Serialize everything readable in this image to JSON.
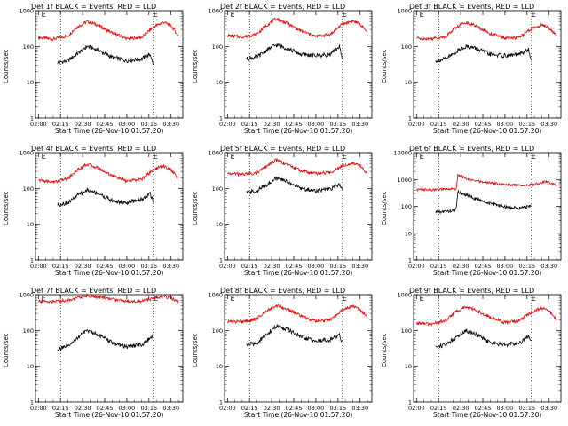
{
  "colors": {
    "events": "#000000",
    "lld": "#e00000",
    "axis": "#000000"
  },
  "x_ticks": [
    "02:00",
    "02:15",
    "02:30",
    "02:45",
    "03:00",
    "03:15",
    "03:30"
  ],
  "y_ticks": [
    "1",
    "10",
    "100",
    "1000"
  ],
  "y_ticks_6f": [
    "1",
    "10",
    "100",
    "1000",
    "10000"
  ],
  "ylabel": "Counts/sec",
  "xlabel": "Start Time (26-Nov-10 01:57:20)",
  "chart_data": [
    {
      "type": "line",
      "title": "Det 1f BLACK = Events, RED = LLD",
      "xlabel": "Start Time (26-Nov-10 01:57:20)",
      "ylabel": "Counts/sec",
      "ylim": [
        1,
        1000
      ],
      "yscale": "log",
      "xlim": [
        "02:00",
        "03:35"
      ],
      "marker_lines": [
        "02:15",
        "03:18"
      ],
      "marker_labels": [
        {
          "text": "E",
          "x": "02:02"
        },
        {
          "text": "E",
          "x": "03:18"
        }
      ],
      "series": [
        {
          "name": "RED = LLD",
          "color": "#e00000",
          "x": [
            "02:00",
            "02:10",
            "02:20",
            "02:25",
            "02:33",
            "02:40",
            "02:50",
            "03:00",
            "03:10",
            "03:18",
            "03:25",
            "03:30",
            "03:35"
          ],
          "values": [
            180,
            160,
            200,
            320,
            500,
            400,
            240,
            165,
            180,
            350,
            480,
            380,
            200
          ]
        },
        {
          "name": "BLACK = Events",
          "color": "#000000",
          "x": [
            "02:13",
            "02:20",
            "02:28",
            "02:33",
            "02:40",
            "02:50",
            "03:00",
            "03:10",
            "03:16",
            "03:18"
          ],
          "values": [
            35,
            40,
            70,
            100,
            80,
            50,
            40,
            45,
            60,
            30
          ]
        }
      ]
    },
    {
      "type": "line",
      "title": "Det 2f BLACK = Events, RED = LLD",
      "xlabel": "Start Time (26-Nov-10 01:57:20)",
      "ylabel": "Counts/sec",
      "ylim": [
        1,
        1000
      ],
      "yscale": "log",
      "xlim": [
        "02:00",
        "03:35"
      ],
      "marker_lines": [
        "02:15",
        "03:18"
      ],
      "marker_labels": [
        {
          "text": "E",
          "x": "02:02"
        },
        {
          "text": "E",
          "x": "03:18"
        }
      ],
      "series": [
        {
          "name": "RED = LLD",
          "color": "#e00000",
          "x": [
            "02:00",
            "02:10",
            "02:20",
            "02:25",
            "02:33",
            "02:40",
            "02:50",
            "03:00",
            "03:10",
            "03:18",
            "03:25",
            "03:30",
            "03:35"
          ],
          "values": [
            200,
            185,
            220,
            350,
            600,
            450,
            270,
            190,
            220,
            420,
            520,
            420,
            240
          ]
        },
        {
          "name": "BLACK = Events",
          "color": "#000000",
          "x": [
            "02:13",
            "02:20",
            "02:28",
            "02:33",
            "02:40",
            "02:50",
            "03:00",
            "03:10",
            "03:16",
            "03:18"
          ],
          "values": [
            45,
            50,
            85,
            110,
            90,
            60,
            55,
            60,
            100,
            45
          ]
        }
      ]
    },
    {
      "type": "line",
      "title": "Det 3f BLACK = Events, RED = LLD",
      "xlabel": "Start Time (26-Nov-10 01:57:20)",
      "ylabel": "Counts/sec",
      "ylim": [
        1,
        1000
      ],
      "yscale": "log",
      "xlim": [
        "02:00",
        "03:35"
      ],
      "marker_lines": [
        "02:15",
        "03:18"
      ],
      "marker_labels": [
        {
          "text": "E",
          "x": "02:02"
        },
        {
          "text": "E",
          "x": "03:18"
        }
      ],
      "series": [
        {
          "name": "RED = LLD",
          "color": "#e00000",
          "x": [
            "02:00",
            "02:10",
            "02:20",
            "02:25",
            "02:33",
            "02:40",
            "02:50",
            "03:00",
            "03:10",
            "03:18",
            "03:25",
            "03:30",
            "03:35"
          ],
          "values": [
            170,
            165,
            190,
            300,
            480,
            380,
            230,
            170,
            180,
            310,
            400,
            330,
            200
          ]
        },
        {
          "name": "BLACK = Events",
          "color": "#000000",
          "x": [
            "02:13",
            "02:20",
            "02:28",
            "02:33",
            "02:40",
            "02:50",
            "03:00",
            "03:10",
            "03:16",
            "03:18"
          ],
          "values": [
            40,
            45,
            75,
            100,
            90,
            60,
            55,
            60,
            80,
            40
          ]
        }
      ]
    },
    {
      "type": "line",
      "title": "Det 4f BLACK = Events, RED = LLD",
      "xlabel": "Start Time (26-Nov-10 01:57:20)",
      "ylabel": "Counts/sec",
      "ylim": [
        1,
        1000
      ],
      "yscale": "log",
      "xlim": [
        "02:00",
        "03:35"
      ],
      "marker_lines": [
        "02:15",
        "03:18"
      ],
      "marker_labels": [
        {
          "text": "E",
          "x": "02:02"
        },
        {
          "text": "E",
          "x": "03:18"
        }
      ],
      "series": [
        {
          "name": "RED = LLD",
          "color": "#e00000",
          "x": [
            "02:00",
            "02:10",
            "02:20",
            "02:25",
            "02:33",
            "02:40",
            "02:50",
            "03:00",
            "03:10",
            "03:18",
            "03:25",
            "03:30",
            "03:35"
          ],
          "values": [
            170,
            150,
            190,
            300,
            480,
            380,
            230,
            160,
            180,
            340,
            430,
            330,
            190
          ]
        },
        {
          "name": "BLACK = Events",
          "color": "#000000",
          "x": [
            "02:13",
            "02:20",
            "02:28",
            "02:33",
            "02:40",
            "02:50",
            "03:00",
            "03:10",
            "03:16",
            "03:18"
          ],
          "values": [
            35,
            40,
            70,
            90,
            75,
            45,
            40,
            50,
            70,
            40
          ]
        }
      ]
    },
    {
      "type": "line",
      "title": "Det 5f BLACK = Events, RED = LLD",
      "xlabel": "Start Time (26-Nov-10 01:57:20)",
      "ylabel": "Counts/sec",
      "ylim": [
        1,
        1000
      ],
      "yscale": "log",
      "xlim": [
        "02:00",
        "03:35"
      ],
      "marker_lines": [
        "02:15",
        "03:18"
      ],
      "marker_labels": [
        {
          "text": "E",
          "x": "02:02"
        },
        {
          "text": "E",
          "x": "03:18"
        }
      ],
      "series": [
        {
          "name": "RED = LLD",
          "color": "#e00000",
          "x": [
            "02:00",
            "02:10",
            "02:20",
            "02:25",
            "02:33",
            "02:40",
            "02:50",
            "03:00",
            "03:10",
            "03:18",
            "03:25",
            "03:30",
            "03:35"
          ],
          "values": [
            260,
            250,
            270,
            380,
            620,
            480,
            310,
            260,
            280,
            440,
            520,
            440,
            260
          ]
        },
        {
          "name": "BLACK = Events",
          "color": "#000000",
          "x": [
            "02:13",
            "02:20",
            "02:28",
            "02:33",
            "02:40",
            "02:50",
            "03:00",
            "03:10",
            "03:16",
            "03:18"
          ],
          "values": [
            75,
            85,
            140,
            190,
            160,
            100,
            85,
            95,
            130,
            90
          ]
        }
      ]
    },
    {
      "type": "line",
      "title": "Det 6f BLACK = Events, RED = LLD",
      "xlabel": "Start Time (26-Nov-10 01:57:20)",
      "ylabel": "Counts/sec",
      "ylim": [
        1,
        10000
      ],
      "yscale": "log",
      "xlim": [
        "02:00",
        "03:35"
      ],
      "marker_lines": [
        "02:15",
        "03:18"
      ],
      "marker_labels": [
        {
          "text": "E",
          "x": "02:02"
        },
        {
          "text": "E",
          "x": "03:18"
        }
      ],
      "series": [
        {
          "name": "RED = LLD",
          "color": "#e00000",
          "x": [
            "02:00",
            "02:10",
            "02:20",
            "02:25",
            "02:27",
            "02:28",
            "02:35",
            "02:45",
            "03:00",
            "03:10",
            "03:20",
            "03:28",
            "03:35"
          ],
          "values": [
            420,
            410,
            430,
            440,
            450,
            1500,
            1000,
            800,
            650,
            600,
            650,
            850,
            600
          ]
        },
        {
          "name": "BLACK = Events",
          "color": "#000000",
          "x": [
            "02:13",
            "02:20",
            "02:25",
            "02:27",
            "02:28",
            "02:35",
            "02:45",
            "03:00",
            "03:10",
            "03:16",
            "03:18"
          ],
          "values": [
            60,
            65,
            70,
            80,
            350,
            250,
            150,
            95,
            85,
            95,
            110
          ]
        }
      ]
    },
    {
      "type": "line",
      "title": "Det 7f BLACK = Events, RED = LLD",
      "xlabel": "Start Time (26-Nov-10 01:57:20)",
      "ylabel": "Counts/sec",
      "ylim": [
        1,
        1000
      ],
      "yscale": "log",
      "xlim": [
        "02:00",
        "03:35"
      ],
      "marker_lines": [
        "02:15",
        "03:18"
      ],
      "marker_labels": [
        {
          "text": "E",
          "x": "02:02"
        },
        {
          "text": "E",
          "x": "03:18"
        }
      ],
      "series": [
        {
          "name": "RED = LLD",
          "color": "#e00000",
          "x": [
            "02:00",
            "02:10",
            "02:20",
            "02:25",
            "02:33",
            "02:40",
            "02:50",
            "03:00",
            "03:10",
            "03:18",
            "03:25",
            "03:30",
            "03:35"
          ],
          "values": [
            650,
            640,
            700,
            800,
            950,
            850,
            750,
            660,
            650,
            800,
            900,
            820,
            640
          ]
        },
        {
          "name": "BLACK = Events",
          "color": "#000000",
          "x": [
            "02:13",
            "02:20",
            "02:28",
            "02:33",
            "02:40",
            "02:50",
            "03:00",
            "03:10",
            "03:16",
            "03:18"
          ],
          "values": [
            30,
            35,
            70,
            100,
            80,
            45,
            35,
            40,
            60,
            70
          ]
        }
      ]
    },
    {
      "type": "line",
      "title": "Det 8f BLACK = Events, RED = LLD",
      "xlabel": "Start Time (26-Nov-10 01:57:20)",
      "ylabel": "Counts/sec",
      "ylim": [
        1,
        1000
      ],
      "yscale": "log",
      "xlim": [
        "02:00",
        "03:35"
      ],
      "marker_lines": [
        "02:15",
        "03:18"
      ],
      "marker_labels": [
        {
          "text": "E",
          "x": "02:02"
        },
        {
          "text": "E",
          "x": "03:18"
        }
      ],
      "series": [
        {
          "name": "RED = LLD",
          "color": "#e00000",
          "x": [
            "02:00",
            "02:10",
            "02:20",
            "02:25",
            "02:33",
            "02:40",
            "02:50",
            "03:00",
            "03:10",
            "03:18",
            "03:25",
            "03:30",
            "03:35"
          ],
          "values": [
            180,
            175,
            210,
            330,
            500,
            400,
            250,
            180,
            200,
            380,
            480,
            380,
            230
          ]
        },
        {
          "name": "BLACK = Events",
          "color": "#000000",
          "x": [
            "02:13",
            "02:20",
            "02:28",
            "02:33",
            "02:40",
            "02:50",
            "03:00",
            "03:10",
            "03:16",
            "03:18"
          ],
          "values": [
            40,
            45,
            85,
            130,
            110,
            65,
            50,
            55,
            75,
            45
          ]
        }
      ]
    },
    {
      "type": "line",
      "title": "Det 9f BLACK = Events, RED = LLD",
      "xlabel": "Start Time (26-Nov-10 01:57:20)",
      "ylabel": "Counts/sec",
      "ylim": [
        1,
        1000
      ],
      "yscale": "log",
      "xlim": [
        "02:00",
        "03:35"
      ],
      "marker_lines": [
        "02:15",
        "03:18"
      ],
      "marker_labels": [
        {
          "text": "E",
          "x": "02:02"
        },
        {
          "text": "E",
          "x": "03:18"
        }
      ],
      "series": [
        {
          "name": "RED = LLD",
          "color": "#e00000",
          "x": [
            "02:00",
            "02:10",
            "02:20",
            "02:25",
            "02:33",
            "02:40",
            "02:50",
            "03:00",
            "03:10",
            "03:18",
            "03:25",
            "03:30",
            "03:35"
          ],
          "values": [
            160,
            150,
            190,
            300,
            460,
            370,
            230,
            165,
            185,
            330,
            430,
            340,
            200
          ]
        },
        {
          "name": "BLACK = Events",
          "color": "#000000",
          "x": [
            "02:13",
            "02:20",
            "02:28",
            "02:33",
            "02:40",
            "02:50",
            "03:00",
            "03:10",
            "03:16",
            "03:18"
          ],
          "values": [
            35,
            40,
            70,
            100,
            80,
            45,
            40,
            45,
            70,
            50
          ]
        }
      ]
    }
  ]
}
